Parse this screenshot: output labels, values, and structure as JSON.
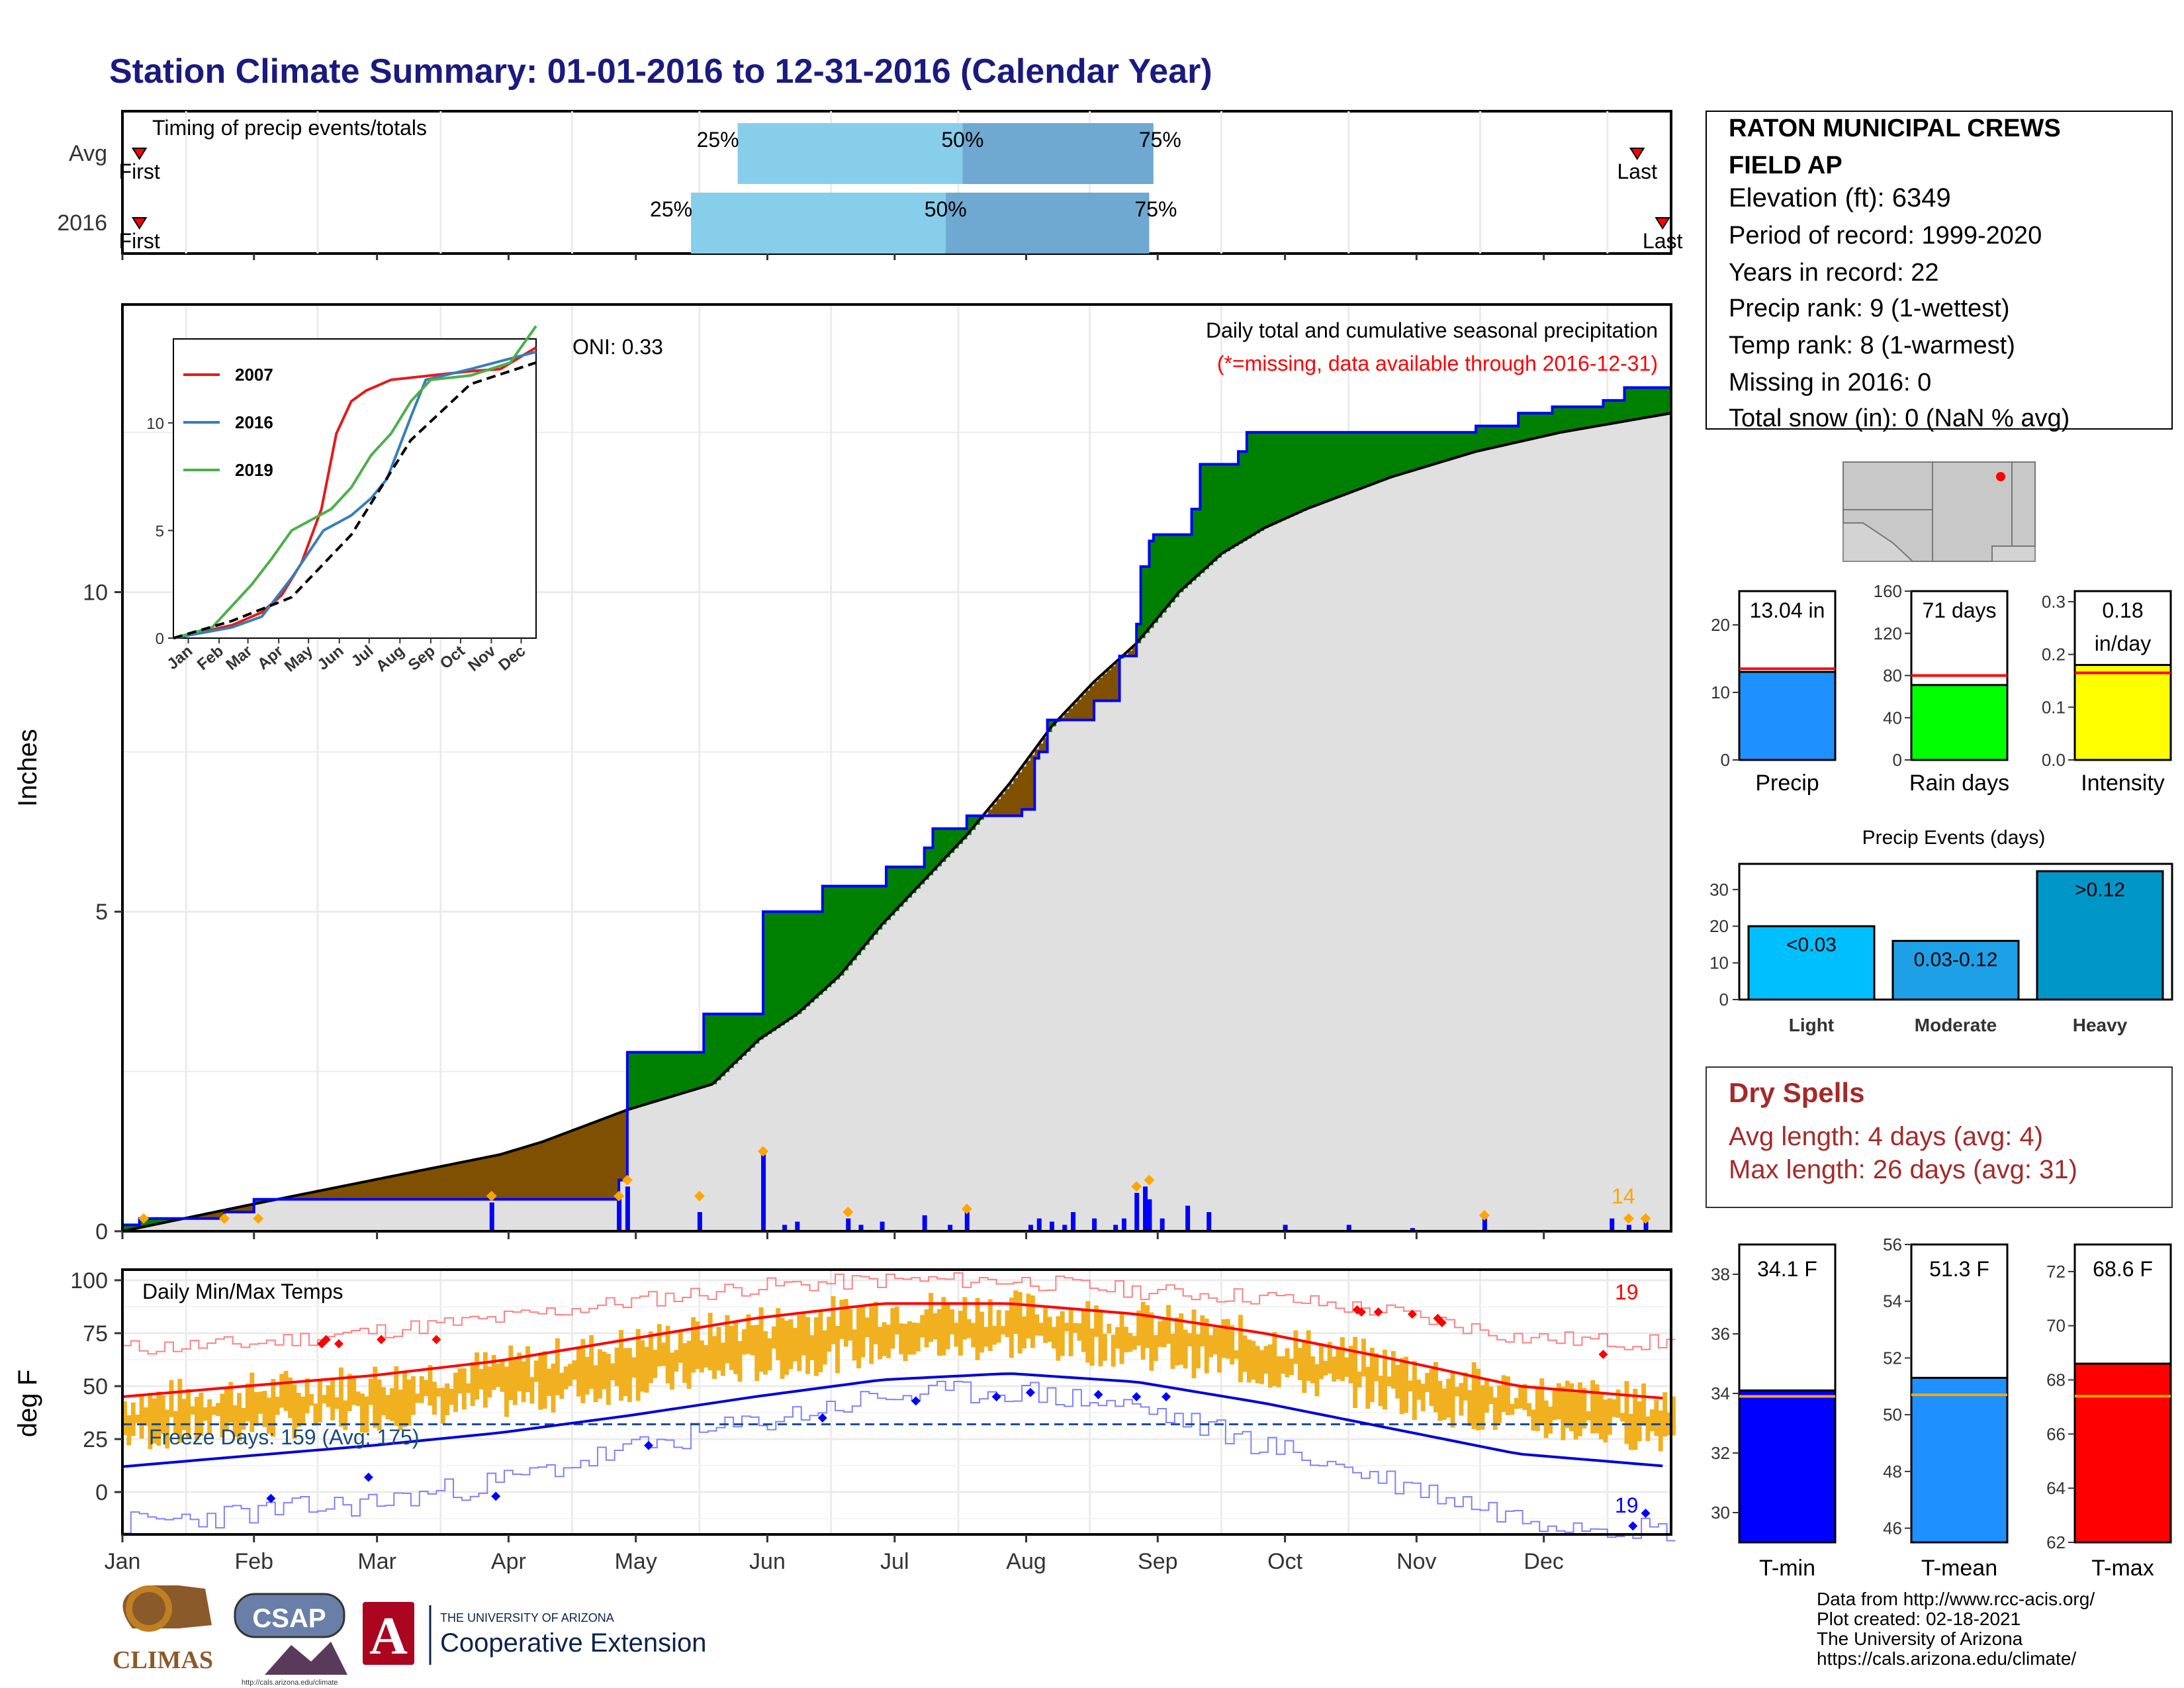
{
  "title": "Station Climate Summary: 01-01-2016 to 12-31-2016 (Calendar Year)",
  "colors": {
    "title": "#1a1a80",
    "precip_2016": "#0000ff",
    "above_avg_fill": "#008000",
    "below_avg_fill": "#7f5000",
    "avg_fill": "#e0e0e0",
    "quartile_light": "#87ceeb",
    "quartile_dark": "#6fa8d0",
    "temp_bar": "#f0b020",
    "tmax_line": "#ff0000",
    "tmin_line": "#0000dd",
    "dry_spells": "#a52a2a",
    "missing_note": "#ff0000",
    "count_orange": "#ffa500"
  },
  "months": [
    "Jan",
    "Feb",
    "Mar",
    "Apr",
    "May",
    "Jun",
    "Jul",
    "Aug",
    "Sep",
    "Oct",
    "Nov",
    "Dec"
  ],
  "timing": {
    "label": "Timing of precip events/totals",
    "rows": [
      {
        "name": "Avg",
        "first_label": "First",
        "last_label": "Last",
        "first_doy": 5,
        "q25_doy": 146,
        "q50_doy": 199,
        "q75_doy": 244,
        "last_doy": 358,
        "labels": [
          "25%",
          "50%",
          "75%"
        ]
      },
      {
        "name": "2016",
        "first_label": "First",
        "last_label": "Last",
        "first_doy": 5,
        "q25_doy": 135,
        "q50_doy": 195,
        "q75_doy": 243,
        "last_doy": 364,
        "labels": [
          "25%",
          "50%",
          "75%"
        ]
      }
    ]
  },
  "chart_data": [
    {
      "type": "area",
      "name": "cumulative_precip",
      "ylabel": "Inches",
      "ylim": [
        0,
        14.5
      ],
      "yticks": [
        0,
        5,
        10
      ],
      "annotation_title": "Daily total and cumulative seasonal precipitation",
      "annotation_missing": "(*=missing, data available through 2016-12-31)",
      "oni": "ONI: 0.33",
      "bar_count_label": "14",
      "cumulative_2016": [
        [
          1,
          0.1
        ],
        [
          5,
          0.2
        ],
        [
          25,
          0.3
        ],
        [
          32,
          0.5
        ],
        [
          87,
          0.5
        ],
        [
          88,
          0.5
        ],
        [
          118,
          0.8
        ],
        [
          120,
          2.8
        ],
        [
          137,
          2.8
        ],
        [
          138,
          3.4
        ],
        [
          151,
          3.4
        ],
        [
          152,
          5.0
        ],
        [
          165,
          5.0
        ],
        [
          166,
          5.4
        ],
        [
          180,
          5.4
        ],
        [
          181,
          5.7
        ],
        [
          190,
          6.0
        ],
        [
          192,
          6.3
        ],
        [
          200,
          6.5
        ],
        [
          213,
          6.6
        ],
        [
          216,
          7.4
        ],
        [
          217,
          7.5
        ],
        [
          219,
          8.0
        ],
        [
          230,
          8.3
        ],
        [
          236,
          9.0
        ],
        [
          240,
          9.5
        ],
        [
          241,
          10.4
        ],
        [
          243,
          10.8
        ],
        [
          244,
          10.9
        ],
        [
          253,
          11.3
        ],
        [
          255,
          12.0
        ],
        [
          263,
          12.0
        ],
        [
          264,
          12.2
        ],
        [
          266,
          12.5
        ],
        [
          275,
          12.5
        ],
        [
          320,
          12.6
        ],
        [
          330,
          12.8
        ],
        [
          338,
          12.9
        ],
        [
          350,
          13.0
        ],
        [
          355,
          13.2
        ],
        [
          366,
          13.3
        ]
      ],
      "cumulative_avg": [
        [
          1,
          0
        ],
        [
          30,
          0.4
        ],
        [
          60,
          0.8
        ],
        [
          90,
          1.2
        ],
        [
          100,
          1.4
        ],
        [
          120,
          1.9
        ],
        [
          140,
          2.3
        ],
        [
          151,
          3.0
        ],
        [
          160,
          3.4
        ],
        [
          170,
          4.0
        ],
        [
          180,
          4.8
        ],
        [
          190,
          5.5
        ],
        [
          200,
          6.2
        ],
        [
          210,
          7.0
        ],
        [
          220,
          7.9
        ],
        [
          230,
          8.6
        ],
        [
          240,
          9.2
        ],
        [
          250,
          10.0
        ],
        [
          260,
          10.6
        ],
        [
          270,
          11.0
        ],
        [
          280,
          11.3
        ],
        [
          300,
          11.8
        ],
        [
          320,
          12.2
        ],
        [
          340,
          12.5
        ],
        [
          366,
          12.8
        ]
      ],
      "daily_bars": [
        [
          88,
          0.45
        ],
        [
          118,
          0.5
        ],
        [
          120,
          0.7
        ],
        [
          137,
          0.3
        ],
        [
          152,
          1.2
        ],
        [
          157,
          0.1
        ],
        [
          160,
          0.15
        ],
        [
          172,
          0.2
        ],
        [
          175,
          0.1
        ],
        [
          180,
          0.15
        ],
        [
          190,
          0.25
        ],
        [
          196,
          0.1
        ],
        [
          200,
          0.3
        ],
        [
          215,
          0.1
        ],
        [
          217,
          0.2
        ],
        [
          220,
          0.15
        ],
        [
          223,
          0.1
        ],
        [
          225,
          0.3
        ],
        [
          230,
          0.2
        ],
        [
          235,
          0.1
        ],
        [
          237,
          0.2
        ],
        [
          240,
          0.6
        ],
        [
          242,
          0.7
        ],
        [
          243,
          0.5
        ],
        [
          246,
          0.2
        ],
        [
          252,
          0.4
        ],
        [
          257,
          0.3
        ],
        [
          275,
          0.1
        ],
        [
          290,
          0.1
        ],
        [
          305,
          0.05
        ],
        [
          322,
          0.2
        ],
        [
          352,
          0.2
        ],
        [
          356,
          0.1
        ],
        [
          360,
          0.15
        ]
      ],
      "orange_markers": [
        [
          6,
          0.2
        ],
        [
          25,
          0.2
        ],
        [
          33,
          0.2
        ],
        [
          88,
          0.55
        ],
        [
          118,
          0.55
        ],
        [
          120,
          0.8
        ],
        [
          137,
          0.55
        ],
        [
          152,
          1.25
        ],
        [
          172,
          0.3
        ],
        [
          200,
          0.35
        ],
        [
          240,
          0.7
        ],
        [
          243,
          0.8
        ],
        [
          322,
          0.25
        ],
        [
          356,
          0.2
        ],
        [
          360,
          0.2
        ]
      ]
    },
    {
      "type": "line",
      "name": "inset_cumulative",
      "yticks": [
        0,
        5,
        10
      ],
      "series": [
        {
          "name": "2007",
          "color": "#e41a1c",
          "values": [
            [
              1,
              0
            ],
            [
              60,
              0.6
            ],
            [
              90,
              1.2
            ],
            [
              110,
              2
            ],
            [
              130,
              3.5
            ],
            [
              150,
              6
            ],
            [
              165,
              9.5
            ],
            [
              180,
              11
            ],
            [
              195,
              11.5
            ],
            [
              220,
              12
            ],
            [
              260,
              12.2
            ],
            [
              300,
              12.4
            ],
            [
              330,
              12.5
            ],
            [
              366,
              13.5
            ]
          ]
        },
        {
          "name": "2016",
          "color": "#377eb8",
          "values": [
            [
              1,
              0
            ],
            [
              60,
              0.5
            ],
            [
              90,
              1.0
            ],
            [
              120,
              2.8
            ],
            [
              152,
              5.0
            ],
            [
              180,
              5.7
            ],
            [
              200,
              6.5
            ],
            [
              216,
              7.4
            ],
            [
              241,
              10.4
            ],
            [
              255,
              12.0
            ],
            [
              300,
              12.5
            ],
            [
              366,
              13.3
            ]
          ]
        },
        {
          "name": "2019",
          "color": "#4daf4a",
          "values": [
            [
              1,
              0
            ],
            [
              40,
              0.5
            ],
            [
              60,
              1.5
            ],
            [
              80,
              2.5
            ],
            [
              100,
              3.7
            ],
            [
              120,
              5.0
            ],
            [
              140,
              5.5
            ],
            [
              160,
              6.0
            ],
            [
              180,
              7.0
            ],
            [
              200,
              8.5
            ],
            [
              220,
              9.5
            ],
            [
              240,
              11
            ],
            [
              260,
              12.0
            ],
            [
              300,
              12.2
            ],
            [
              340,
              12.8
            ],
            [
              366,
              14.5
            ]
          ]
        },
        {
          "name": "avg",
          "color": "#000000",
          "values": [
            [
              1,
              0
            ],
            [
              60,
              0.8
            ],
            [
              120,
              1.9
            ],
            [
              180,
              4.8
            ],
            [
              240,
              9.2
            ],
            [
              300,
              11.8
            ],
            [
              366,
              12.8
            ]
          ]
        }
      ]
    },
    {
      "type": "bar",
      "name": "daily_temps",
      "title": "Daily Min/Max Temps",
      "ylabel": "deg F",
      "ylim": [
        -20,
        105
      ],
      "yticks": [
        0,
        25,
        50,
        75,
        100
      ],
      "freeze_label": "Freeze Days: 159 (Avg: 175)",
      "freeze_line": 32,
      "count_max": "19",
      "count_min": "19",
      "avg_tmax": [
        [
          1,
          45
        ],
        [
          30,
          50
        ],
        [
          60,
          55
        ],
        [
          90,
          62
        ],
        [
          120,
          72
        ],
        [
          150,
          82
        ],
        [
          180,
          89
        ],
        [
          210,
          89
        ],
        [
          240,
          84
        ],
        [
          270,
          75
        ],
        [
          300,
          63
        ],
        [
          330,
          50
        ],
        [
          366,
          44
        ]
      ],
      "avg_tmin": [
        [
          1,
          12
        ],
        [
          30,
          17
        ],
        [
          60,
          22
        ],
        [
          90,
          28
        ],
        [
          120,
          36
        ],
        [
          150,
          45
        ],
        [
          180,
          53
        ],
        [
          210,
          56
        ],
        [
          240,
          52
        ],
        [
          270,
          42
        ],
        [
          300,
          30
        ],
        [
          330,
          18
        ],
        [
          366,
          12
        ]
      ],
      "record_max": [
        [
          1,
          68
        ],
        [
          30,
          70
        ],
        [
          60,
          76
        ],
        [
          90,
          82
        ],
        [
          120,
          90
        ],
        [
          150,
          97
        ],
        [
          180,
          100
        ],
        [
          210,
          100
        ],
        [
          240,
          95
        ],
        [
          270,
          92
        ],
        [
          300,
          85
        ],
        [
          330,
          73
        ],
        [
          366,
          70
        ]
      ],
      "record_min": [
        [
          1,
          -15
        ],
        [
          30,
          -10
        ],
        [
          60,
          -5
        ],
        [
          90,
          5
        ],
        [
          120,
          20
        ],
        [
          150,
          33
        ],
        [
          180,
          45
        ],
        [
          210,
          48
        ],
        [
          240,
          40
        ],
        [
          270,
          22
        ],
        [
          300,
          5
        ],
        [
          330,
          -12
        ],
        [
          366,
          -18
        ]
      ]
    },
    {
      "type": "bar",
      "name": "precip_summary",
      "categories": [
        "Precip",
        "Rain days",
        "Intensity"
      ],
      "values": [
        13.04,
        71,
        0.18
      ],
      "value_labels": [
        "13.04 in",
        "71 days",
        "0.18"
      ],
      "intensity_unit": "in/day",
      "averages": [
        13.5,
        80,
        0.165
      ],
      "ylims": [
        [
          0,
          25
        ],
        [
          0,
          160
        ],
        [
          0,
          0.32
        ]
      ],
      "yticks": [
        [
          "0",
          "10",
          "20"
        ],
        [
          "0",
          "40",
          "80",
          "120",
          "160"
        ],
        [
          "0.0",
          "0.1",
          "0.2",
          "0.3"
        ]
      ]
    },
    {
      "type": "bar",
      "name": "precip_events",
      "title": "Precip Events (days)",
      "categories": [
        "Light",
        "Moderate",
        "Heavy"
      ],
      "values": [
        20,
        16,
        35
      ],
      "bar_labels": [
        "<0.03",
        "0.03-0.12",
        ">0.12"
      ],
      "ylim": [
        0,
        37
      ],
      "yticks": [
        "0",
        "10",
        "20",
        "30"
      ]
    },
    {
      "type": "bar",
      "name": "temp_summary",
      "categories": [
        "T-min",
        "T-mean",
        "T-max"
      ],
      "values": [
        34.1,
        51.3,
        68.6
      ],
      "value_labels": [
        "34.1 F",
        "51.3 F",
        "68.6 F"
      ],
      "averages": [
        33.9,
        50.7,
        67.4
      ],
      "ylims": [
        [
          29,
          39
        ],
        [
          45.5,
          56
        ],
        [
          62,
          73
        ]
      ],
      "yticks": [
        [
          "30",
          "32",
          "34",
          "36",
          "38"
        ],
        [
          "46",
          "48",
          "50",
          "52",
          "54",
          "56"
        ],
        [
          "62",
          "64",
          "66",
          "68",
          "70",
          "72"
        ]
      ]
    }
  ],
  "station": {
    "name_line1": "RATON MUNICIPAL CREWS",
    "name_line2": "FIELD AP",
    "lines": [
      "Elevation (ft): 6349",
      "Period of record: 1999-2020",
      "Years in record: 22",
      "Precip rank: 9 (1-wettest)",
      "Temp rank: 8 (1-warmest)",
      "Missing in 2016: 0",
      "Total snow (in): 0 (NaN % avg)"
    ]
  },
  "dry_spells": {
    "title": "Dry Spells",
    "avg_line": "Avg length: 4 days (avg: 4)",
    "max_line": "Max length: 26 days (avg: 31)"
  },
  "credits": [
    "Data from http://www.rcc-acis.org/",
    "Plot created: 02-18-2021",
    "The University of Arizona",
    "https://cals.arizona.edu/climate/"
  ],
  "logos": {
    "climas": "CLIMAS",
    "csap": "CSAP",
    "csap_url": "http://cals.arizona.edu/climate",
    "ua_small": "THE UNIVERSITY OF ARIZONA",
    "ua_ext": "Cooperative Extension"
  }
}
